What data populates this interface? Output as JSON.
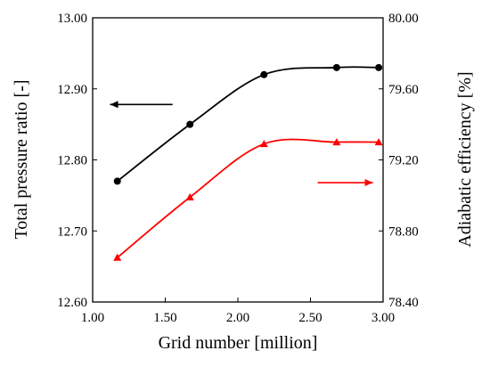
{
  "chart_data": {
    "type": "line",
    "xlabel": "Grid number [million]",
    "ylabel_left": "Total pressure ratio [-]",
    "ylabel_right": "Adiabatic efficiency [%]",
    "xlim": [
      1.0,
      3.0
    ],
    "ylim_left": [
      12.6,
      13.0
    ],
    "ylim_right": [
      78.4,
      80.0
    ],
    "x_ticks": [
      "1.00",
      "1.50",
      "2.00",
      "2.50",
      "3.00"
    ],
    "y_ticks_left": [
      "12.60",
      "12.70",
      "12.80",
      "12.90",
      "13.00"
    ],
    "y_ticks_right": [
      "78.40",
      "78.80",
      "79.20",
      "79.60",
      "80.00"
    ],
    "grid": false,
    "series": [
      {
        "axis": "left",
        "color": "#000000",
        "marker": "circle",
        "x": [
          1.17,
          1.67,
          2.18,
          2.68,
          2.97
        ],
        "values": [
          12.77,
          12.85,
          12.92,
          12.93,
          12.93
        ]
      },
      {
        "axis": "right",
        "color": "#ff0000",
        "marker": "triangle",
        "x": [
          1.17,
          1.67,
          2.18,
          2.68,
          2.97
        ],
        "values": [
          78.65,
          78.99,
          79.29,
          79.3,
          79.3
        ]
      }
    ],
    "annotations": [
      {
        "type": "arrow",
        "direction": "left",
        "points_to": "left axis",
        "color": "#000000"
      },
      {
        "type": "arrow",
        "direction": "right",
        "points_to": "right axis",
        "color": "#ff0000"
      }
    ]
  }
}
